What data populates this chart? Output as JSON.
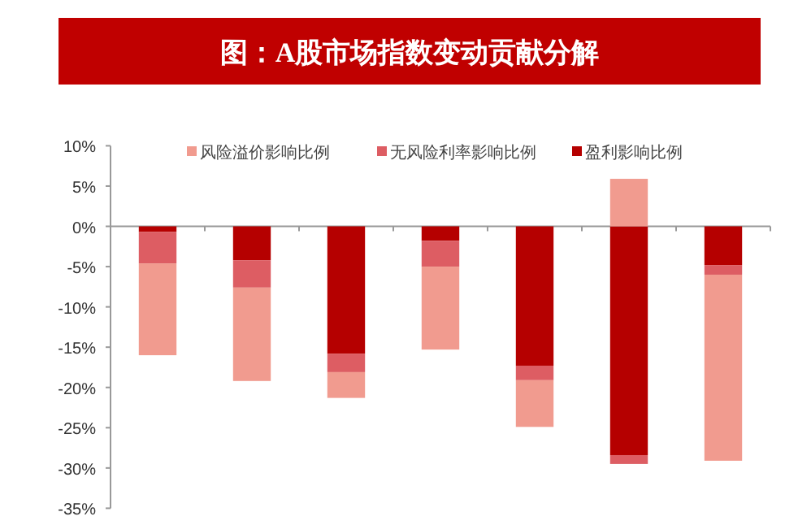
{
  "chart_data": {
    "type": "bar",
    "title": "图：A股市场指数变动贡献分解",
    "stacked": true,
    "categories": [
      null,
      null,
      null,
      null,
      null,
      null,
      null
    ],
    "series": [
      {
        "name": "盈利影响比例",
        "color": "#b50000",
        "values": [
          -0.7,
          -4.2,
          -15.8,
          -1.8,
          -17.3,
          -28.4,
          -4.8
        ]
      },
      {
        "name": "无风险利率影响比例",
        "color": "#dd5d63",
        "values": [
          -3.9,
          -3.4,
          -2.3,
          -3.2,
          -1.8,
          -1.1,
          -1.2
        ]
      },
      {
        "name": "风险溢价影响比例",
        "color": "#f19b8f",
        "values": [
          -11.4,
          -11.6,
          -3.2,
          -10.3,
          -5.8,
          5.9,
          -23.1
        ]
      }
    ],
    "ylim": [
      -35,
      10
    ],
    "yticks": [
      {
        "value": 10,
        "label": "10%"
      },
      {
        "value": 5,
        "label": "5%"
      },
      {
        "value": 0,
        "label": "0%"
      },
      {
        "value": -5,
        "label": "-5%"
      },
      {
        "value": -10,
        "label": "-10%"
      },
      {
        "value": -15,
        "label": "-15%"
      },
      {
        "value": -20,
        "label": "-20%"
      },
      {
        "value": -25,
        "label": "-25%"
      },
      {
        "value": -30,
        "label": "-30%"
      },
      {
        "value": -35,
        "label": "-35%"
      }
    ],
    "legend": "top"
  }
}
